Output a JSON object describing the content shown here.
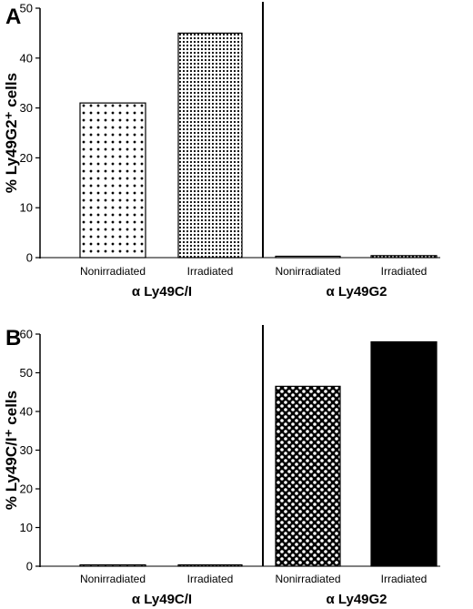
{
  "chart_data": [
    {
      "type": "bar",
      "panel": "A",
      "ylabel": "% Ly49G2⁺ cells",
      "ylim": [
        0,
        50
      ],
      "yticks": [
        0,
        10,
        20,
        30,
        40,
        50
      ],
      "categories": [
        "Nonirradiated",
        "Irradiated",
        "Nonirradiated",
        "Irradiated"
      ],
      "groups": [
        "α Ly49C/I",
        "α Ly49G2"
      ],
      "values": [
        31,
        45,
        0.2,
        0.4
      ],
      "patterns": [
        "sparse-dots",
        "dense-dots",
        "sparse-dots",
        "dense-dots"
      ]
    },
    {
      "type": "bar",
      "panel": "B",
      "ylabel": "% Ly49C/I⁺ cells",
      "ylim": [
        0,
        60
      ],
      "yticks": [
        0,
        10,
        20,
        30,
        40,
        50,
        60
      ],
      "categories": [
        "Nonirradiated",
        "Irradiated",
        "Nonirradiated",
        "Irradiated"
      ],
      "groups": [
        "α Ly49C/I",
        "α Ly49G2"
      ],
      "values": [
        0.1,
        0.3,
        46.5,
        58
      ],
      "patterns": [
        "sparse-dots",
        "dense-dots",
        "checker",
        "solid"
      ]
    }
  ]
}
